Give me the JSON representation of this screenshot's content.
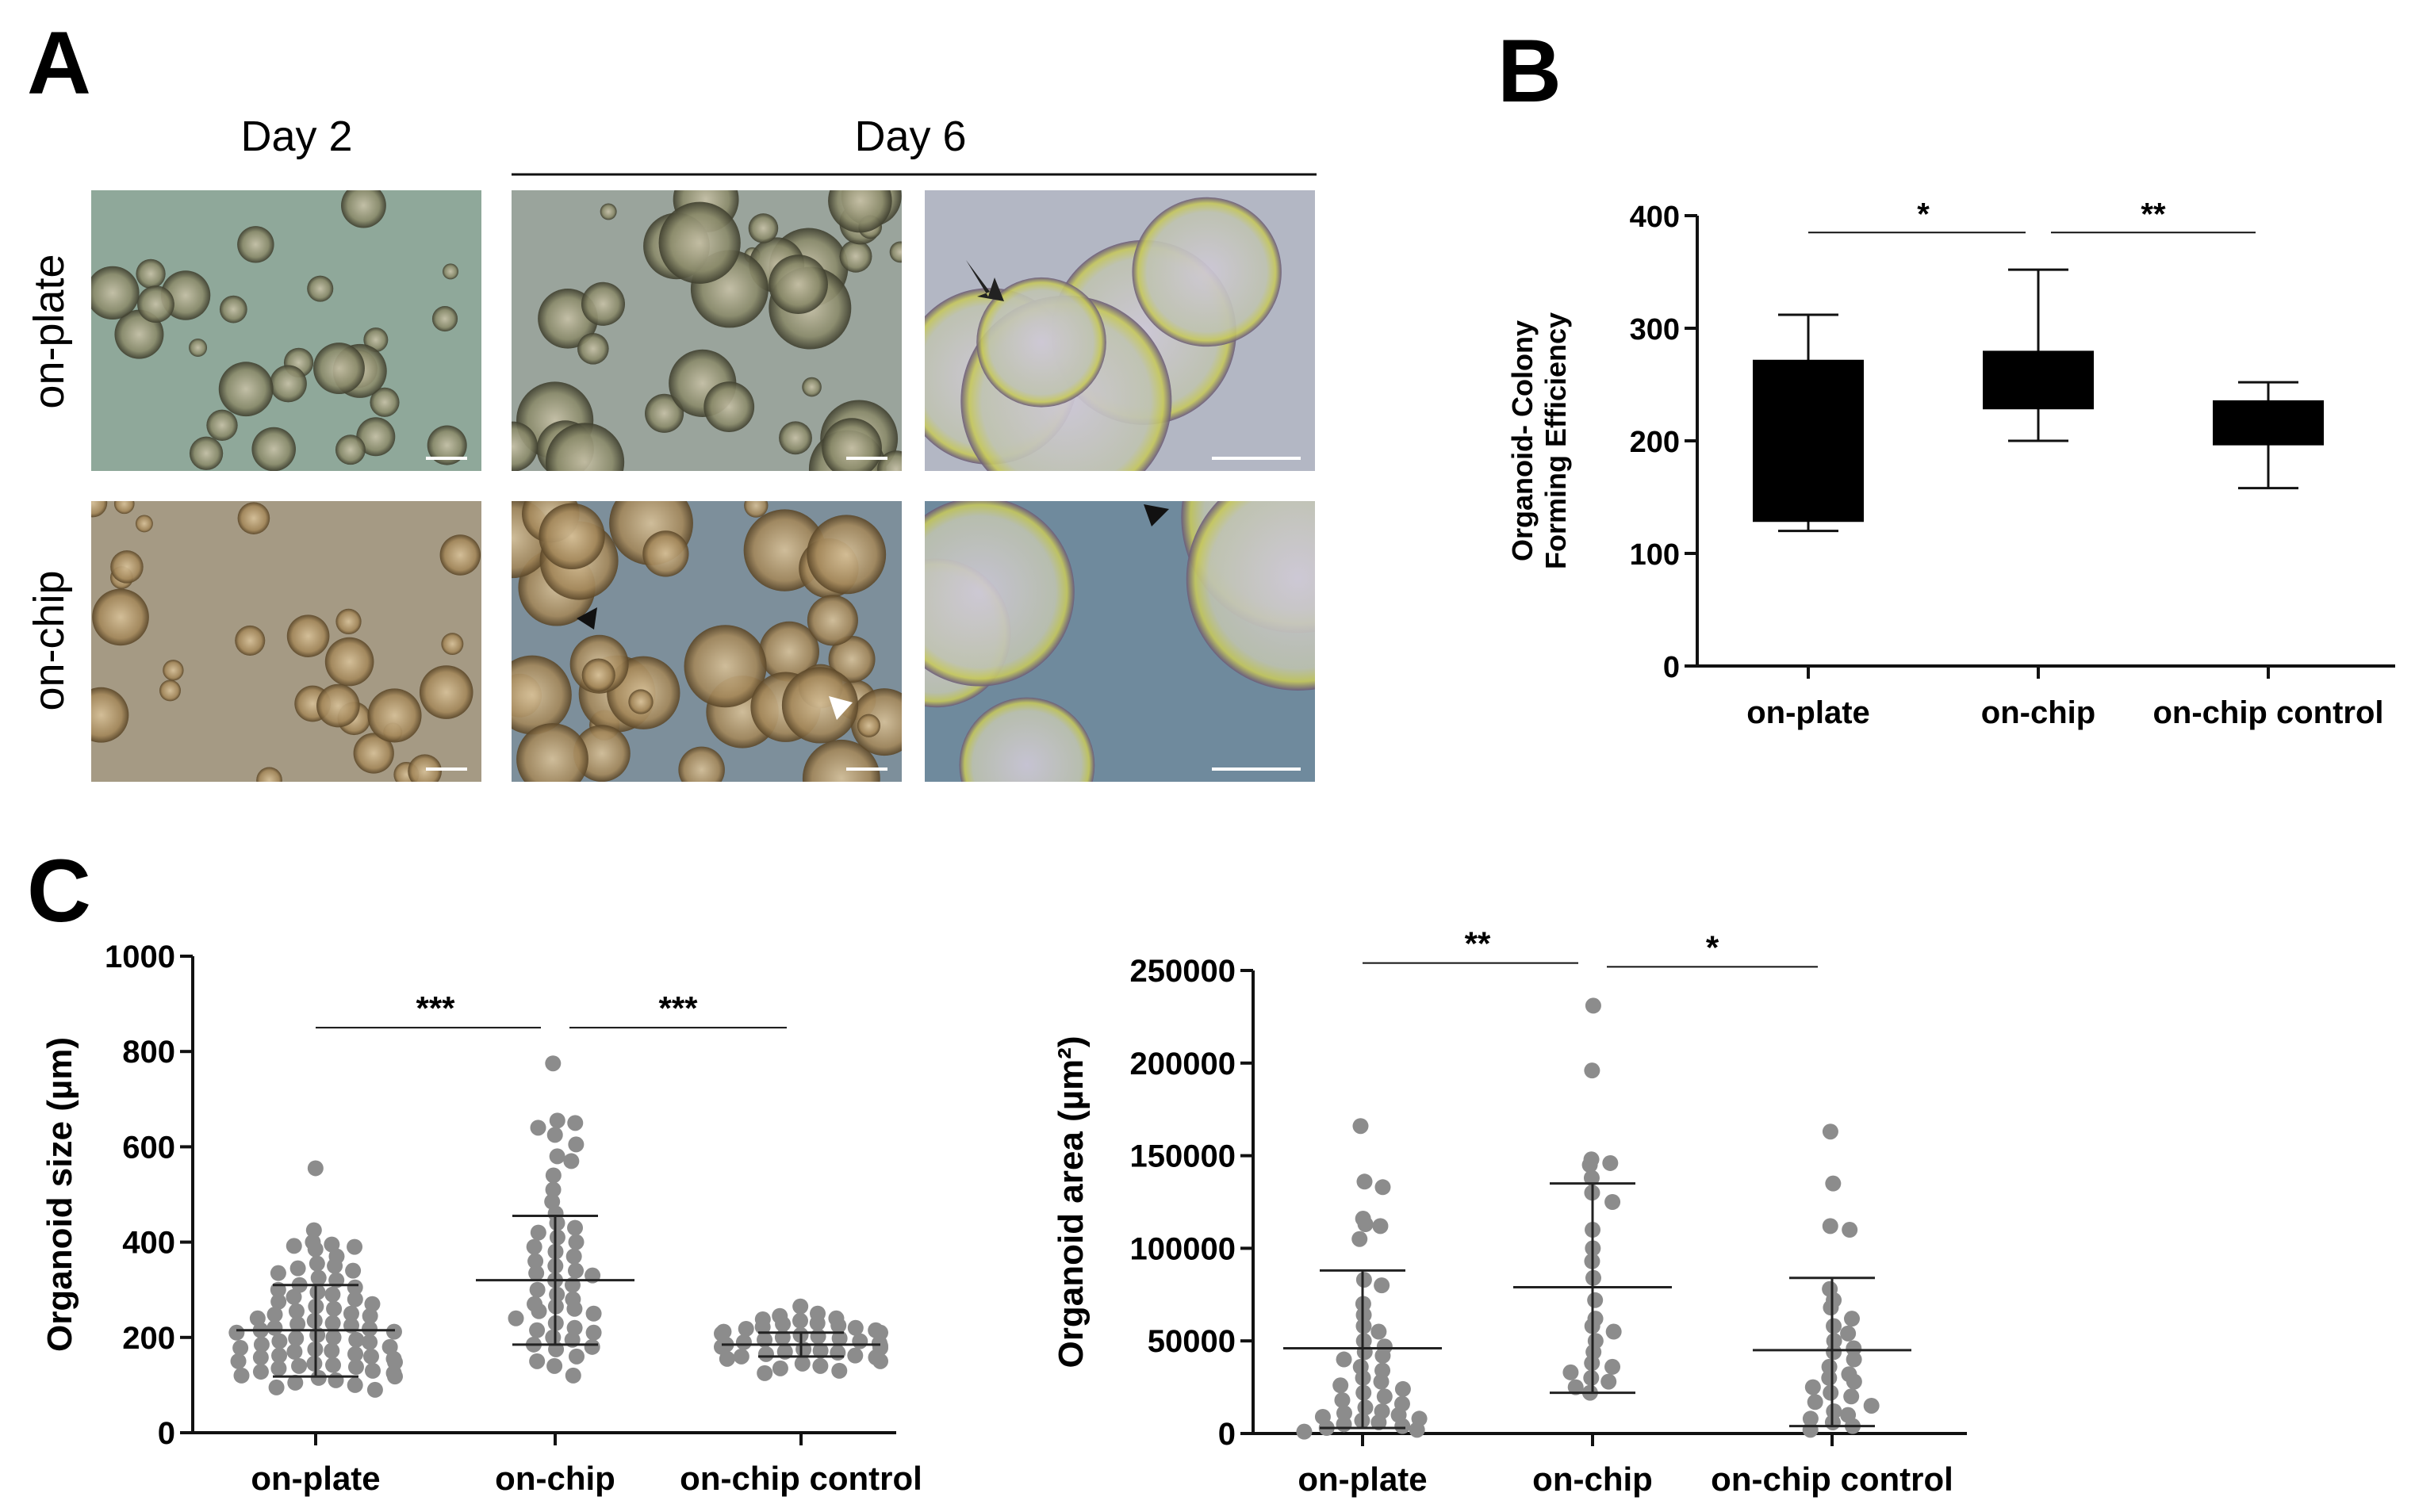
{
  "panels": {
    "A": {
      "letter": "A",
      "day2_label": "Day 2",
      "day6_label": "Day 6",
      "row_labels": [
        "on-plate",
        "on-chip"
      ]
    },
    "B": {
      "letter": "B"
    },
    "C": {
      "letter": "C"
    }
  },
  "micrographs": [
    {
      "row": "on-plate",
      "col": "day2",
      "tone": "#8fa89a"
    },
    {
      "row": "on-plate",
      "col": "day6",
      "tone": "#9aa49c"
    },
    {
      "row": "on-plate",
      "col": "day6-zoom",
      "tone": "#b3b7c4",
      "marker": "arrow"
    },
    {
      "row": "on-chip",
      "col": "day2",
      "tone": "#a59a84"
    },
    {
      "row": "on-chip",
      "col": "day6",
      "tone": "#7d8f9b",
      "marker": "arrowheads"
    },
    {
      "row": "on-chip",
      "col": "day6-zoom",
      "tone": "#6f8a9d",
      "marker": "arrowhead"
    }
  ],
  "chart_data": [
    {
      "type": "box",
      "panel": "B",
      "categories": [
        "on-plate",
        "on-chip",
        "on-chip control"
      ],
      "ylabel_lines": [
        "Organoid- Colony",
        "Forming Efficiency"
      ],
      "ylim": [
        0,
        400
      ],
      "yticks": [
        0,
        100,
        200,
        300,
        400
      ],
      "boxes": [
        {
          "min": 120,
          "q1": 128,
          "median": 200,
          "q3": 272,
          "max": 312
        },
        {
          "min": 200,
          "q1": 228,
          "median": 255,
          "q3": 280,
          "max": 352
        },
        {
          "min": 158,
          "q1": 196,
          "median": 215,
          "q3": 236,
          "max": 252
        }
      ],
      "significance": [
        {
          "from": 0,
          "to": 1,
          "label": "*",
          "y": 385
        },
        {
          "from": 1,
          "to": 2,
          "label": "**",
          "y": 385
        }
      ]
    },
    {
      "type": "scatter",
      "panel": "C-left",
      "categories": [
        "on-plate",
        "on-chip",
        "on-chip control"
      ],
      "ylabel": "Organoid size (µm)",
      "ylim": [
        0,
        1000
      ],
      "yticks": [
        0,
        200,
        400,
        600,
        800,
        1000
      ],
      "groups": [
        {
          "mean": 215,
          "sd_low": 118,
          "sd_high": 310,
          "points": [
            555,
            425,
            400,
            395,
            392,
            390,
            385,
            370,
            355,
            350,
            345,
            340,
            335,
            325,
            320,
            310,
            305,
            300,
            295,
            290,
            285,
            280,
            275,
            270,
            265,
            260,
            255,
            250,
            248,
            245,
            240,
            235,
            230,
            228,
            225,
            220,
            218,
            215,
            212,
            210,
            205,
            200,
            198,
            195,
            192,
            190,
            185,
            180,
            178,
            175,
            172,
            170,
            165,
            162,
            160,
            158,
            155,
            150,
            148,
            145,
            142,
            140,
            138,
            135,
            130,
            128,
            125,
            120,
            118,
            115,
            110,
            105,
            100,
            95,
            90
          ]
        },
        {
          "mean": 320,
          "sd_low": 185,
          "sd_high": 455,
          "points": [
            775,
            655,
            650,
            640,
            625,
            605,
            580,
            570,
            540,
            510,
            485,
            460,
            440,
            430,
            420,
            410,
            400,
            390,
            380,
            370,
            360,
            350,
            340,
            335,
            330,
            320,
            310,
            300,
            290,
            280,
            270,
            265,
            260,
            255,
            250,
            240,
            230,
            220,
            215,
            210,
            200,
            195,
            185,
            180,
            175,
            160,
            150,
            140,
            120
          ]
        },
        {
          "mean": 185,
          "sd_low": 160,
          "sd_high": 210,
          "points": [
            265,
            250,
            245,
            240,
            238,
            235,
            230,
            228,
            225,
            222,
            220,
            218,
            215,
            212,
            210,
            208,
            205,
            202,
            200,
            198,
            195,
            192,
            190,
            188,
            185,
            182,
            180,
            178,
            175,
            172,
            170,
            168,
            165,
            162,
            160,
            158,
            155,
            150,
            145,
            140,
            135,
            130,
            125
          ]
        }
      ],
      "significance": [
        {
          "from": 0,
          "to": 1,
          "label": "***",
          "y": 850
        },
        {
          "from": 1,
          "to": 2,
          "label": "***",
          "y": 850
        }
      ]
    },
    {
      "type": "scatter",
      "panel": "C-right",
      "categories": [
        "on-plate",
        "on-chip",
        "on-chip control"
      ],
      "ylabel": "Organoid area (µm²)",
      "ylim": [
        0,
        250000
      ],
      "yticks": [
        0,
        50000,
        100000,
        150000,
        200000,
        250000
      ],
      "groups": [
        {
          "mean": 46000,
          "sd_low": 3000,
          "sd_high": 88000,
          "points": [
            166000,
            136000,
            133000,
            116000,
            113000,
            112000,
            105000,
            83000,
            80000,
            70000,
            64000,
            58000,
            55000,
            50000,
            47000,
            44000,
            42000,
            40000,
            36000,
            34000,
            30000,
            28000,
            26000,
            24000,
            22000,
            20000,
            18000,
            16000,
            14000,
            12000,
            11000,
            10000,
            9000,
            8000,
            7000,
            6000,
            5000,
            4000,
            3000,
            2000,
            1000
          ]
        },
        {
          "mean": 79000,
          "sd_low": 22000,
          "sd_high": 135000,
          "points": [
            231000,
            196000,
            148000,
            146000,
            145000,
            138000,
            130000,
            125000,
            110000,
            100000,
            93000,
            84000,
            72000,
            62000,
            58000,
            55000,
            50000,
            44000,
            38000,
            36000,
            33000,
            30000,
            28000,
            25000,
            22000
          ]
        },
        {
          "mean": 45000,
          "sd_low": 4000,
          "sd_high": 84000,
          "points": [
            163000,
            135000,
            112000,
            110000,
            78000,
            72000,
            68000,
            62000,
            58000,
            54000,
            50000,
            46000,
            44000,
            40000,
            36000,
            32000,
            30000,
            28000,
            25000,
            22000,
            20000,
            17000,
            15000,
            12000,
            10000,
            8000,
            6000,
            4000,
            2000
          ]
        }
      ],
      "significance": [
        {
          "from": 0,
          "to": 1,
          "label": "**",
          "y": 254000
        },
        {
          "from": 1,
          "to": 2,
          "label": "*",
          "y": 252000
        }
      ]
    }
  ]
}
